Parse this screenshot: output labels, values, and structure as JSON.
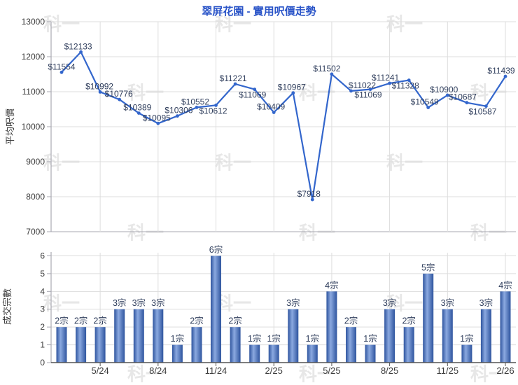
{
  "title": "翠屏花園 - 實用呎價走勢",
  "watermark_text": "科一",
  "colors": {
    "title": "#2B55C8",
    "line": "#3366CC",
    "point_label": "#32405E",
    "bar_edge": "#2E549E",
    "bar_center": "#8BA9E0",
    "grid": "#DDDDDD",
    "axis_light": "#A9A9B2",
    "axis_dark": "#555555",
    "tick_text": "#3A3A3A"
  },
  "chart_data": [
    {
      "type": "line",
      "title": "翠屏花園 - 實用呎價走勢",
      "ylabel": "平均呎價",
      "ylim": [
        7000,
        13000
      ],
      "yticks": [
        7000,
        8000,
        9000,
        10000,
        11000,
        12000,
        13000
      ],
      "grid": true,
      "legend": "none",
      "values": [
        11554,
        12133,
        10992,
        10776,
        10389,
        10095,
        10306,
        10552,
        10612,
        11221,
        11069,
        10409,
        10967,
        7918,
        11502,
        11022,
        11069,
        11241,
        11328,
        10549,
        10900,
        10687,
        10587,
        11439
      ],
      "point_labels": [
        "$11554",
        "$12133",
        "$10992",
        "$10776",
        "$10389",
        "$10095",
        "$10306",
        "$10552",
        "$10612",
        "$11221",
        "$11069",
        "$10409",
        "$10967",
        "$7918",
        "$11502",
        "$11022",
        "$11069",
        "$11241",
        "$11328",
        "$10549",
        "$10900",
        "$10687",
        "$10587",
        "$11439"
      ],
      "x_tick_labels": [
        "5/24",
        "8/24",
        "11/24",
        "2/25",
        "5/25",
        "8/25",
        "11/25",
        "2/26"
      ],
      "x_tick_indices": [
        3,
        6,
        9,
        12,
        15,
        18,
        21,
        24
      ]
    },
    {
      "type": "bar",
      "ylabel": "成交宗數",
      "ylim": [
        0,
        6
      ],
      "yticks": [
        0,
        1,
        2,
        3,
        4,
        5,
        6
      ],
      "grid": true,
      "legend": "none",
      "values": [
        2,
        2,
        2,
        3,
        3,
        3,
        1,
        2,
        6,
        2,
        1,
        1,
        3,
        1,
        4,
        2,
        1,
        3,
        2,
        5,
        3,
        1,
        3,
        4
      ],
      "bar_labels": [
        "2宗",
        "2宗",
        "2宗",
        "3宗",
        "3宗",
        "3宗",
        "1宗",
        "2宗",
        "6宗",
        "2宗",
        "1宗",
        "1宗",
        "3宗",
        "1宗",
        "4宗",
        "2宗",
        "1宗",
        "3宗",
        "2宗",
        "5宗",
        "3宗",
        "1宗",
        "3宗",
        "4宗"
      ],
      "x_tick_labels": [
        "5/24",
        "8/24",
        "11/24",
        "2/25",
        "5/25",
        "8/25",
        "11/25",
        "2/26"
      ],
      "x_tick_indices": [
        3,
        6,
        9,
        12,
        15,
        18,
        21,
        24
      ]
    }
  ]
}
